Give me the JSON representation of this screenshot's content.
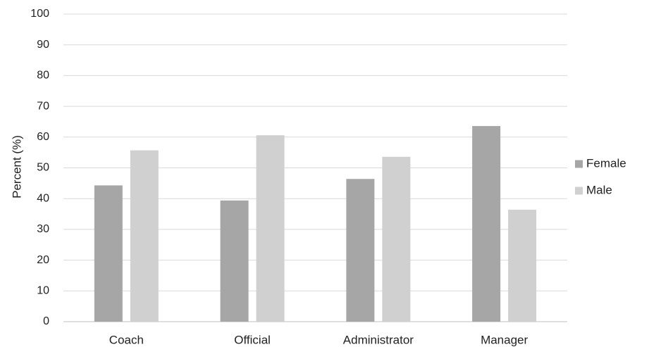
{
  "chart_data": {
    "type": "bar",
    "categories": [
      "Coach",
      "Official",
      "Administrator",
      "Manager"
    ],
    "series": [
      {
        "name": "Female",
        "values": [
          44.3,
          39.4,
          46.4,
          63.6
        ],
        "color": "#a6a6a6"
      },
      {
        "name": "Male",
        "values": [
          55.7,
          60.6,
          53.6,
          36.4
        ],
        "color": "#d0d0d0"
      }
    ],
    "title": "",
    "xlabel": "",
    "ylabel": "Percent (%)",
    "ylim": [
      0,
      100
    ],
    "yticks": [
      0,
      10,
      20,
      30,
      40,
      50,
      60,
      70,
      80,
      90,
      100
    ],
    "grid": true,
    "legend_position": "right"
  }
}
